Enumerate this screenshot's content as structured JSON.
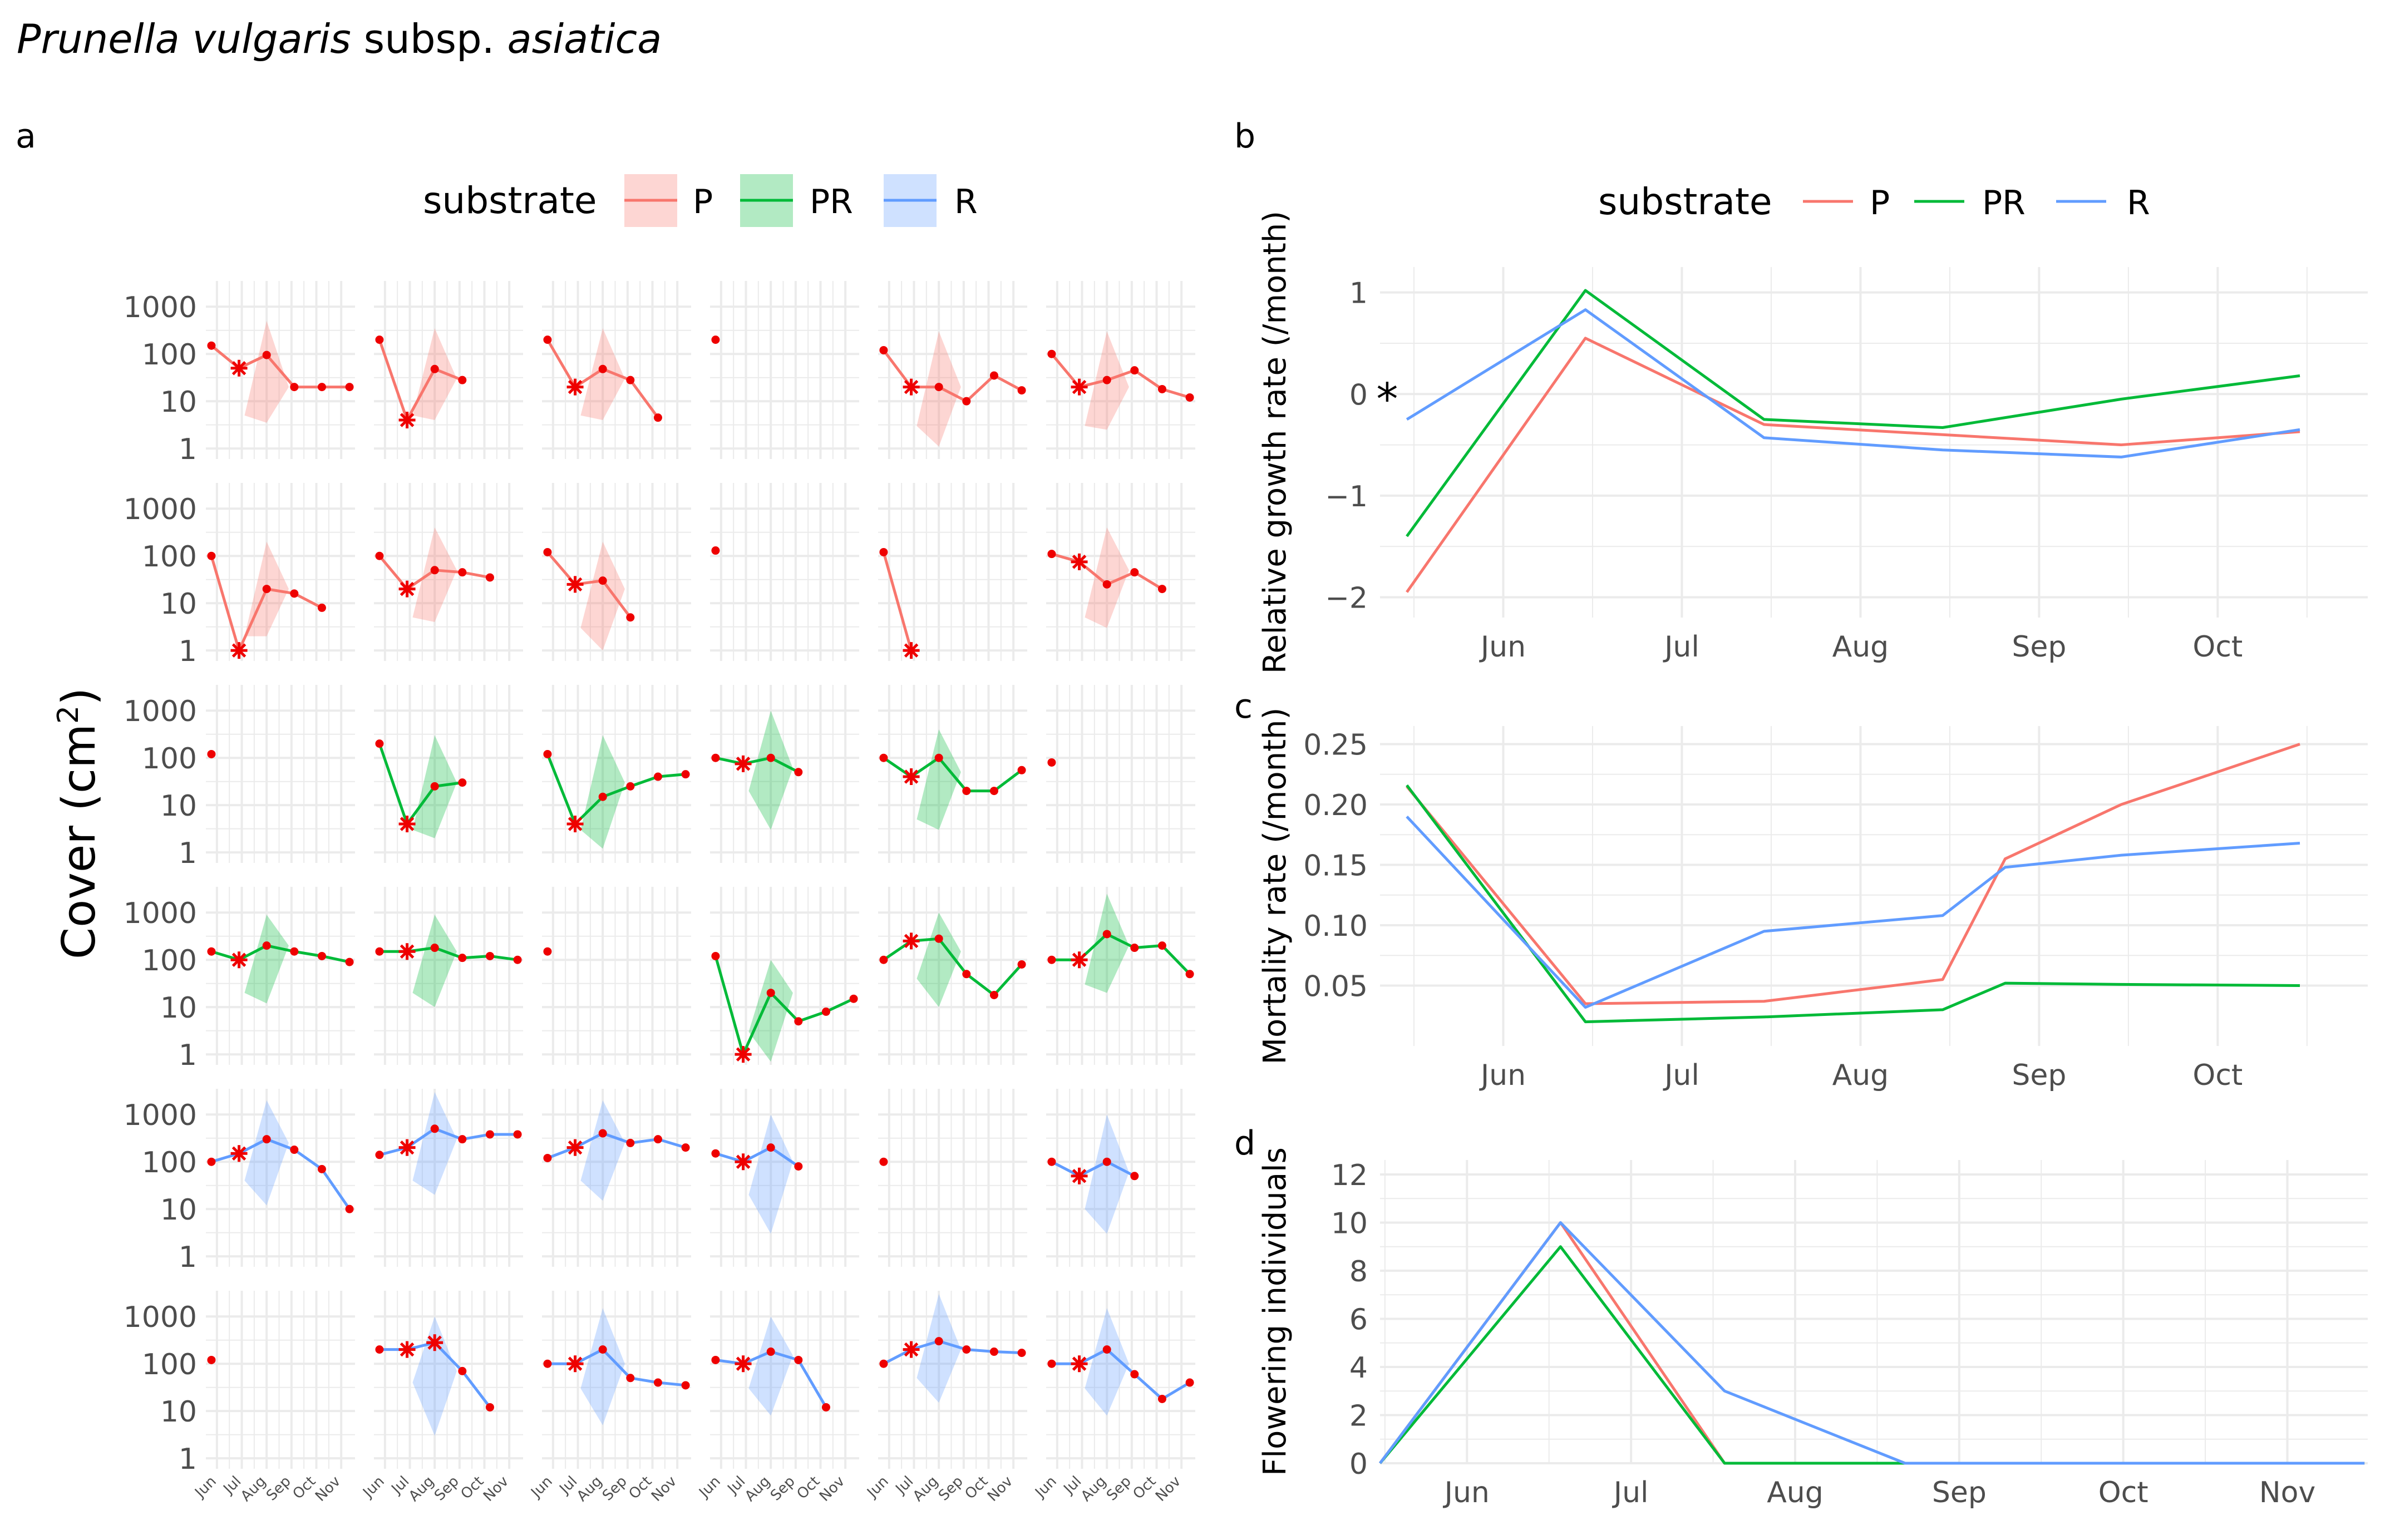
{
  "figure": {
    "title_italic_1": "Prunella vulgaris",
    "title_plain": " subsp. ",
    "title_italic_2": "asiatica"
  },
  "colors": {
    "P": "#F8766D",
    "PR": "#00BA38",
    "R": "#619CFF",
    "marker": "#EE0000",
    "grid": "#EBEBEB",
    "text": "#4D4D4D"
  },
  "chart_data": [
    {
      "panel": "a",
      "type": "line",
      "legend": {
        "title": "substrate",
        "entries": [
          "P",
          "PR",
          "R"
        ],
        "placement": "top"
      },
      "ylabel_base": "Cover (cm",
      "ylabel_sup": "2",
      "ylabel_end": ")",
      "yscale": "log10",
      "ylim": [
        0.6,
        3500
      ],
      "yticks": [
        1,
        10,
        100,
        1000
      ],
      "ytick_labels": [
        "1",
        "10",
        "100",
        "1000"
      ],
      "xlim": [
        -0.2,
        5.2
      ],
      "xticks": [
        0.2,
        1.1,
        2.0,
        2.9,
        3.8,
        4.7
      ],
      "xtick_labels": [
        "Jun",
        "Jul",
        "Aug",
        "Sep",
        "Oct",
        "Nov"
      ],
      "band_x": [
        1.2,
        2.0,
        2.8
      ],
      "panels": [
        {
          "substrate": "P",
          "values": [
            150,
            50,
            95,
            20,
            20,
            20,
            null,
            null,
            null,
            null,
            null
          ],
          "star": 1,
          "band": [
            5,
            500,
            20,
            3.5
          ]
        },
        {
          "substrate": "P",
          "values": [
            200,
            4,
            48,
            28,
            null,
            null,
            null,
            null,
            null,
            null,
            null
          ],
          "star": 1,
          "band": [
            5,
            350,
            30,
            4
          ]
        },
        {
          "substrate": "P",
          "values": [
            200,
            20,
            48,
            28,
            4.5,
            null,
            null,
            null,
            null,
            null,
            null
          ],
          "star": 1,
          "band": [
            5,
            350,
            30,
            4
          ]
        },
        {
          "substrate": "P",
          "values": [
            200,
            null,
            null,
            null,
            null,
            null,
            null,
            null,
            null,
            null,
            null
          ],
          "star": null,
          "band": null
        },
        {
          "substrate": "P",
          "values": [
            120,
            20,
            20,
            10,
            35,
            17,
            null,
            null,
            null,
            null,
            null
          ],
          "star": 1,
          "band": [
            3,
            300,
            20,
            1.1
          ]
        },
        {
          "substrate": "P",
          "values": [
            100,
            20,
            28,
            45,
            18,
            12,
            null,
            null,
            null,
            null,
            null
          ],
          "star": 1,
          "band": [
            3,
            300,
            20,
            2.5
          ]
        },
        {
          "substrate": "P",
          "values": [
            100,
            1,
            20,
            16,
            8,
            null,
            null,
            null,
            null,
            null,
            null
          ],
          "star": 1,
          "band": [
            2,
            200,
            20,
            2
          ]
        },
        {
          "substrate": "P",
          "values": [
            100,
            20,
            50,
            45,
            35,
            null,
            null,
            null,
            null,
            null,
            null
          ],
          "star": 1,
          "band": [
            5,
            400,
            50,
            4
          ]
        },
        {
          "substrate": "P",
          "values": [
            120,
            25,
            30,
            5,
            null,
            null,
            null,
            null,
            null,
            null,
            null
          ],
          "star": 1,
          "band": [
            3,
            200,
            20,
            1
          ]
        },
        {
          "substrate": "P",
          "values": [
            130,
            null,
            null,
            null,
            null,
            null,
            null,
            null,
            null,
            null,
            null
          ],
          "star": null,
          "band": null
        },
        {
          "substrate": "P",
          "values": [
            120,
            1,
            null,
            null,
            null,
            null,
            null,
            null,
            null,
            null,
            null
          ],
          "star": 1,
          "band": null
        },
        {
          "substrate": "P",
          "values": [
            110,
            75,
            25,
            45,
            20,
            null,
            null,
            null,
            null,
            null,
            null
          ],
          "star": 1,
          "band": [
            5,
            400,
            50,
            3
          ]
        },
        {
          "substrate": "PR",
          "values": [
            120,
            null,
            null,
            null,
            null,
            null,
            null,
            null,
            null,
            null,
            null
          ],
          "star": null,
          "band": null
        },
        {
          "substrate": "PR",
          "values": [
            200,
            4,
            25,
            30,
            null,
            null,
            null,
            null,
            null,
            null,
            null
          ],
          "star": 1,
          "band": [
            3,
            300,
            30,
            2
          ]
        },
        {
          "substrate": "PR",
          "values": [
            120,
            4,
            15,
            25,
            40,
            45,
            null,
            null,
            null,
            null,
            null
          ],
          "star": 1,
          "band": [
            3,
            300,
            30,
            1.2
          ]
        },
        {
          "substrate": "PR",
          "values": [
            100,
            75,
            100,
            50,
            null,
            null,
            null,
            null,
            null,
            null,
            null
          ],
          "star": 1,
          "band": [
            20,
            1000,
            60,
            3
          ]
        },
        {
          "substrate": "PR",
          "values": [
            100,
            40,
            100,
            20,
            20,
            55,
            null,
            null,
            null,
            null,
            null
          ],
          "star": 1,
          "band": [
            5,
            400,
            50,
            3
          ]
        },
        {
          "substrate": "PR",
          "values": [
            80,
            null,
            null,
            null,
            null,
            null,
            null,
            null,
            null,
            null,
            null
          ],
          "star": null,
          "band": null
        },
        {
          "substrate": "PR",
          "values": [
            150,
            100,
            200,
            150,
            120,
            90,
            null,
            null,
            null,
            null,
            null
          ],
          "star": 1,
          "band": [
            20,
            900,
            200,
            12
          ]
        },
        {
          "substrate": "PR",
          "values": [
            150,
            150,
            180,
            110,
            120,
            100,
            null,
            null,
            null,
            null,
            null
          ],
          "star": 1,
          "band": [
            20,
            900,
            150,
            10
          ]
        },
        {
          "substrate": "PR",
          "values": [
            150,
            null,
            null,
            null,
            null,
            null,
            null,
            null,
            null,
            null,
            null
          ],
          "star": null,
          "band": null
        },
        {
          "substrate": "PR",
          "values": [
            120,
            1,
            20,
            5,
            8,
            15,
            null,
            null,
            null,
            null,
            null
          ],
          "star": 1,
          "band": [
            3,
            100,
            20,
            0.7
          ]
        },
        {
          "substrate": "PR",
          "values": [
            100,
            250,
            280,
            50,
            18,
            80,
            null,
            null,
            null,
            null,
            null
          ],
          "star": 1,
          "band": [
            40,
            1000,
            150,
            10
          ]
        },
        {
          "substrate": "PR",
          "values": [
            100,
            100,
            350,
            180,
            200,
            50,
            null,
            null,
            null,
            null,
            null
          ],
          "star": 1,
          "band": [
            30,
            2500,
            200,
            20
          ]
        },
        {
          "substrate": "R",
          "values": [
            100,
            150,
            300,
            180,
            70,
            10,
            null,
            null,
            null,
            null,
            null
          ],
          "star": 1,
          "band": [
            40,
            2000,
            250,
            12
          ]
        },
        {
          "substrate": "R",
          "values": [
            140,
            200,
            500,
            300,
            380,
            380,
            null,
            null,
            null,
            null,
            null
          ],
          "star": 1,
          "band": [
            40,
            3000,
            300,
            20
          ]
        },
        {
          "substrate": "R",
          "values": [
            120,
            200,
            400,
            250,
            300,
            200,
            null,
            null,
            null,
            null,
            null
          ],
          "star": 1,
          "band": [
            40,
            2000,
            250,
            15
          ]
        },
        {
          "substrate": "R",
          "values": [
            150,
            100,
            200,
            80,
            null,
            null,
            null,
            null,
            null,
            null,
            null
          ],
          "star": 1,
          "band": [
            20,
            1000,
            100,
            3
          ]
        },
        {
          "substrate": "R",
          "values": [
            100,
            null,
            null,
            null,
            null,
            null,
            null,
            null,
            null,
            null,
            null
          ],
          "star": null,
          "band": null
        },
        {
          "substrate": "R",
          "values": [
            100,
            50,
            100,
            50,
            null,
            null,
            null,
            null,
            null,
            null,
            null
          ],
          "star": 1,
          "band": [
            10,
            1000,
            60,
            3
          ]
        },
        {
          "substrate": "R",
          "values": [
            120,
            null,
            null,
            null,
            null,
            null,
            null,
            null,
            null,
            null,
            null
          ],
          "star": null,
          "band": null
        },
        {
          "substrate": "R",
          "values": [
            200,
            200,
            280,
            70,
            12,
            null,
            null,
            null,
            null,
            null,
            null
          ],
          "star": 2,
          "band": [
            40,
            1000,
            70,
            3
          ]
        },
        {
          "substrate": "R",
          "values": [
            100,
            100,
            200,
            50,
            40,
            35,
            null,
            null,
            null,
            null,
            null
          ],
          "star": 1,
          "band": [
            30,
            1500,
            100,
            5
          ]
        },
        {
          "substrate": "R",
          "values": [
            120,
            100,
            180,
            120,
            12,
            null,
            null,
            null,
            null,
            null,
            null
          ],
          "star": 1,
          "band": [
            30,
            1000,
            150,
            8
          ]
        },
        {
          "substrate": "R",
          "values": [
            100,
            200,
            300,
            200,
            180,
            170,
            null,
            null,
            null,
            null,
            null
          ],
          "star": 1,
          "band": [
            50,
            3000,
            200,
            15
          ]
        },
        {
          "substrate": "R",
          "values": [
            100,
            100,
            200,
            60,
            18,
            40,
            null,
            null,
            null,
            null,
            null
          ],
          "star": 1,
          "band": [
            30,
            1500,
            100,
            8
          ]
        }
      ]
    },
    {
      "panel": "b",
      "type": "line",
      "legend": {
        "title": "substrate",
        "entries": [
          "P",
          "PR",
          "R"
        ],
        "placement": "top"
      },
      "ylabel": "Relative growth rate (/month)",
      "ylim": [
        -2.2,
        1.25
      ],
      "yticks": [
        -2,
        -1,
        0,
        1
      ],
      "ytick_labels": [
        "−2",
        "−1",
        "0",
        "1"
      ],
      "xlim": [
        0,
        5.53
      ],
      "xticks": [
        0.69,
        1.69,
        2.69,
        3.69,
        4.69
      ],
      "xtick_labels": [
        "Jun",
        "Jul",
        "Aug",
        "Sep",
        "Oct"
      ],
      "annotation": "*",
      "annotation_at": [
        0.04,
        0.0
      ],
      "x": [
        0.15,
        1.15,
        2.15,
        3.15,
        4.15,
        5.15
      ],
      "series": [
        {
          "name": "P",
          "values": [
            -1.95,
            0.55,
            -0.3,
            -0.4,
            -0.5,
            -0.37
          ]
        },
        {
          "name": "PR",
          "values": [
            -1.4,
            1.02,
            -0.25,
            -0.33,
            -0.05,
            0.18
          ]
        },
        {
          "name": "R",
          "values": [
            -0.25,
            0.83,
            -0.43,
            -0.55,
            -0.62,
            -0.35
          ]
        }
      ]
    },
    {
      "panel": "c",
      "type": "line",
      "ylabel": "Mortality rate (/month)",
      "ylim": [
        0.0,
        0.265
      ],
      "yticks": [
        0.05,
        0.1,
        0.15,
        0.2,
        0.25
      ],
      "ytick_labels": [
        "0.05",
        "0.10",
        "0.15",
        "0.20",
        "0.25"
      ],
      "xlim": [
        0,
        5.53
      ],
      "xticks": [
        0.69,
        1.69,
        2.69,
        3.69,
        4.69
      ],
      "xtick_labels": [
        "Jun",
        "Jul",
        "Aug",
        "Sep",
        "Oct"
      ],
      "x": [
        0.15,
        1.15,
        2.15,
        3.15,
        3.5,
        4.15,
        5.15
      ],
      "series": [
        {
          "name": "P",
          "values": [
            0.215,
            0.035,
            0.037,
            0.055,
            0.155,
            0.2,
            0.25
          ]
        },
        {
          "name": "PR",
          "values": [
            0.216,
            0.02,
            0.024,
            0.03,
            0.052,
            0.051,
            0.05
          ]
        },
        {
          "name": "R",
          "values": [
            0.19,
            0.032,
            0.095,
            0.108,
            0.148,
            0.158,
            0.168
          ]
        }
      ]
    },
    {
      "panel": "d",
      "type": "line",
      "ylabel": "Flowering individuals",
      "ylim": [
        0,
        12.6
      ],
      "yticks": [
        0,
        2,
        4,
        6,
        8,
        10,
        12
      ],
      "ytick_labels": [
        "0",
        "2",
        "4",
        "6",
        "8",
        "10",
        "12"
      ],
      "xlim": [
        0,
        6.02
      ],
      "xticks": [
        0.53,
        1.53,
        2.53,
        3.53,
        4.53,
        5.53
      ],
      "xtick_labels": [
        "Jun",
        "Jul",
        "Aug",
        "Sep",
        "Oct",
        "Nov"
      ],
      "x": [
        0.0,
        1.1,
        2.1,
        3.2,
        4.2,
        5.2,
        6.0
      ],
      "series": [
        {
          "name": "P",
          "values": [
            0,
            10,
            0,
            0,
            0,
            0,
            0
          ]
        },
        {
          "name": "PR",
          "values": [
            0,
            9,
            0,
            0,
            0,
            0,
            0
          ]
        },
        {
          "name": "R",
          "values": [
            0,
            10,
            3,
            0,
            0,
            0,
            0
          ]
        }
      ]
    }
  ],
  "panel_labels": [
    "a",
    "b",
    "c",
    "d"
  ]
}
